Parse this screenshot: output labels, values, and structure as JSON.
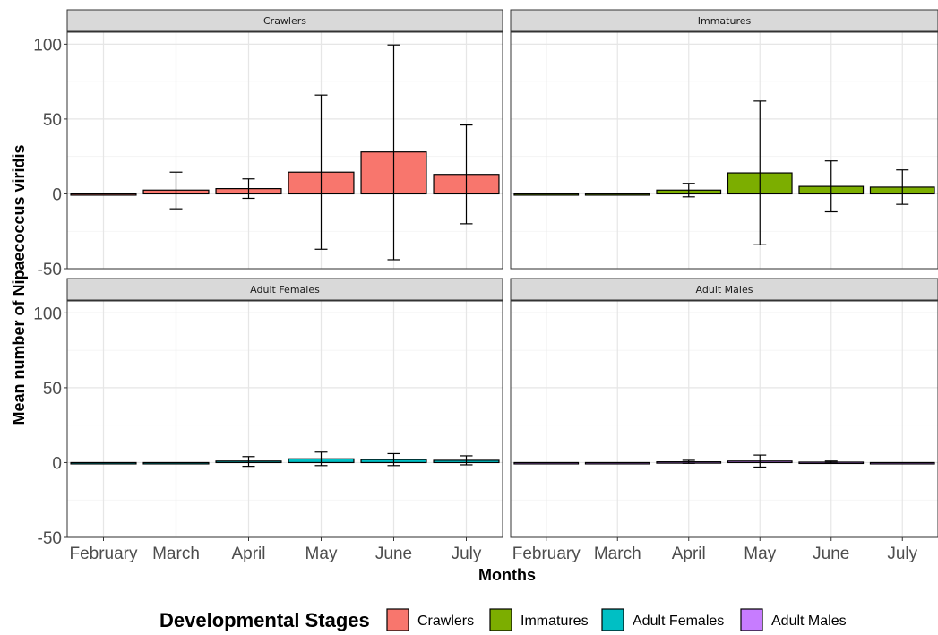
{
  "chart_data": {
    "type": "bar",
    "facet_layout": "2x2",
    "ylabel": "Mean number of Nipaecoccus viridis",
    "xlabel": "Months",
    "ylim": [
      -50,
      108
    ],
    "yticks": [
      -50,
      0,
      50,
      100
    ],
    "grid": true,
    "legend": {
      "title": "Developmental Stages",
      "position": "bottom",
      "items": [
        {
          "label": "Crawlers",
          "color": "#F8766D"
        },
        {
          "label": "Immatures",
          "color": "#7CAE00"
        },
        {
          "label": "Adult Females",
          "color": "#00BFC4"
        },
        {
          "label": "Adult Males",
          "color": "#C77CFF"
        }
      ]
    },
    "categories": [
      "February",
      "March",
      "April",
      "May",
      "June",
      "July"
    ],
    "panels": [
      {
        "title": "Crawlers",
        "color": "#F8766D",
        "values": [
          0,
          2.5,
          3.5,
          14.5,
          28,
          13
        ],
        "err_low": [
          0,
          -10,
          -3,
          -37,
          -44,
          -20
        ],
        "err_high": [
          0,
          14.5,
          10,
          66,
          99.5,
          46
        ]
      },
      {
        "title": "Immatures",
        "color": "#7CAE00",
        "values": [
          0,
          0,
          2.5,
          14,
          5,
          4.5
        ],
        "err_low": [
          0,
          0,
          -2,
          -34,
          -12,
          -7
        ],
        "err_high": [
          0,
          0,
          7,
          62,
          22,
          16
        ]
      },
      {
        "title": "Adult Females",
        "color": "#00BFC4",
        "values": [
          0,
          0,
          1,
          2.5,
          2,
          1.5
        ],
        "err_low": [
          0,
          0,
          -2.5,
          -2,
          -2,
          -1.5
        ],
        "err_high": [
          0,
          0,
          4,
          7,
          6,
          4.5
        ]
      },
      {
        "title": "Adult Males",
        "color": "#C77CFF",
        "values": [
          0,
          0,
          0.5,
          1,
          0.3,
          0
        ],
        "err_low": [
          0,
          0,
          -0.5,
          -3,
          -0.5,
          0
        ],
        "err_high": [
          0,
          0,
          1.5,
          5,
          1,
          0
        ]
      }
    ]
  }
}
